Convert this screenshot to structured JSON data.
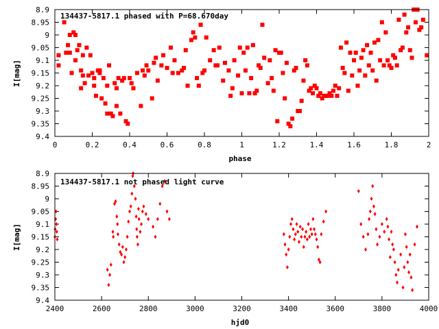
{
  "colors": {
    "points": "#ff0000",
    "axes": "#000000",
    "background": "#ffffff"
  },
  "chart_data": [
    {
      "type": "scatter",
      "title": "134437-5817.1 phased with P=68.670day",
      "xlabel": "phase",
      "ylabel": "I[mag]",
      "xlim": [
        0,
        2
      ],
      "ylim": [
        8.9,
        9.4
      ],
      "y_inverted": true,
      "x_ticks": [
        0,
        0.2,
        0.4,
        0.6,
        0.8,
        1,
        1.2,
        1.4,
        1.6,
        1.8,
        2
      ],
      "x_tick_labels": [
        "0",
        "0.2",
        "0.4",
        "0.6",
        "0.8",
        "1",
        "1.2",
        "1.4",
        "1.6",
        "1.8",
        "2"
      ],
      "y_ticks": [
        8.9,
        8.95,
        9.0,
        9.05,
        9.1,
        9.15,
        9.2,
        9.25,
        9.3,
        9.35,
        9.4
      ],
      "y_tick_labels": [
        "8.9",
        "8.95",
        "9",
        "9.05",
        "9.1",
        "9.15",
        "9.2",
        "9.25",
        "9.3",
        "9.35",
        "9.4"
      ],
      "grid": false,
      "legend": "none",
      "marker": "square",
      "series": [
        {
          "x": [
            0.02,
            0.02,
            0.05,
            0.07,
            0.08,
            0.08,
            0.09,
            0.1,
            0.11,
            0.12,
            0.13,
            0.14,
            0.15,
            0.15,
            0.16,
            0.17,
            0.18,
            0.19,
            0.2,
            0.21,
            0.22,
            0.23,
            0.24,
            0.25,
            0.26,
            0.27,
            0.28,
            0.29,
            0.3,
            0.31,
            0.32,
            0.33,
            0.34,
            0.35,
            0.37,
            0.38,
            0.39,
            0.4,
            0.42,
            0.44,
            0.46,
            0.47,
            0.48,
            0.5,
            0.52,
            0.54,
            0.55,
            0.57,
            0.58,
            0.6,
            0.62,
            0.64,
            0.66,
            0.68,
            0.7,
            0.71,
            0.73,
            0.75,
            0.76,
            0.77,
            0.78,
            0.79,
            0.81,
            0.83,
            0.85,
            0.86,
            0.88,
            0.9,
            0.91,
            0.93,
            0.95,
            0.96,
            0.98,
            1.0,
            1.01,
            1.02,
            1.03,
            1.05,
            1.06,
            1.07,
            1.09,
            1.1,
            1.12,
            1.14,
            1.16,
            1.17,
            1.18,
            1.19,
            1.2,
            1.21,
            1.22,
            1.24,
            1.25,
            1.26,
            1.27,
            1.28,
            1.29,
            1.31,
            1.32,
            1.33,
            1.35,
            1.36,
            1.37,
            1.38,
            1.39,
            1.4,
            1.41,
            1.42,
            1.43,
            1.44,
            1.45,
            1.46,
            1.47,
            1.48,
            1.49,
            1.5,
            1.51,
            1.52,
            1.54,
            1.55,
            1.57,
            1.58,
            1.59,
            1.6,
            1.61,
            1.62,
            1.63,
            1.64,
            1.65,
            1.66,
            1.67,
            1.68,
            1.7,
            1.71,
            1.73,
            1.74,
            1.76,
            1.77,
            1.79,
            1.8,
            1.81,
            1.83,
            1.85,
            1.87,
            1.88,
            1.89,
            1.9,
            1.91,
            1.93,
            1.95,
            1.97,
            1.99,
            0.06,
            0.11,
            0.14,
            0.21,
            0.24,
            0.28,
            0.33,
            0.36,
            0.41,
            0.49,
            0.53,
            0.63,
            0.69,
            0.74,
            0.8,
            0.87,
            0.94,
            0.99,
            1.04,
            1.08,
            1.11,
            1.15,
            1.23,
            1.3,
            1.34,
            1.53,
            1.56,
            1.69,
            1.72,
            1.75,
            1.78,
            1.82,
            1.84,
            1.86,
            1.92,
            1.94,
            1.96
          ],
          "y": [
            9.08,
            9.12,
            8.95,
            9.04,
            9.0,
            9.07,
            9.15,
            8.99,
            9.0,
            9.06,
            9.04,
            9.21,
            9.08,
            9.16,
            9.19,
            9.05,
            9.16,
            9.08,
            9.15,
            9.2,
            9.24,
            9.14,
            9.14,
            9.25,
            9.17,
            9.27,
            9.2,
            9.12,
            9.31,
            9.32,
            9.19,
            9.21,
            9.17,
            9.31,
            9.17,
            9.34,
            9.35,
            9.17,
            9.21,
            9.15,
            9.28,
            9.14,
            9.16,
            9.14,
            9.25,
            9.09,
            9.18,
            9.12,
            9.08,
            9.13,
            9.05,
            9.1,
            9.15,
            9.14,
            9.06,
            9.2,
            9.02,
            9.01,
            9.17,
            9.2,
            8.96,
            9.15,
            9.01,
            9.1,
            9.06,
            9.12,
            9.05,
            9.18,
            9.11,
            9.14,
            9.21,
            9.1,
            9.16,
            9.23,
            9.07,
            9.14,
            9.05,
            9.17,
            9.04,
            9.23,
            9.12,
            9.13,
            9.09,
            9.19,
            9.17,
            9.22,
            9.06,
            9.34,
            9.07,
            9.07,
            9.15,
            9.11,
            9.35,
            9.36,
            9.33,
            9.14,
            9.13,
            9.3,
            9.26,
            9.18,
            9.12,
            9.22,
            9.21,
            9.23,
            9.2,
            9.21,
            9.24,
            9.23,
            9.25,
            9.24,
            9.24,
            9.24,
            9.23,
            9.24,
            9.22,
            9.2,
            9.24,
            9.21,
            9.13,
            9.15,
            9.22,
            9.07,
            9.16,
            9.1,
            9.07,
            9.2,
            9.14,
            9.09,
            9.06,
            9.16,
            9.04,
            9.12,
            9.14,
            9.03,
            9.02,
            9.1,
            9.12,
            8.99,
            9.12,
            9.13,
            9.08,
            9.12,
            9.06,
            8.92,
            8.99,
            8.97,
            9.06,
            9.09,
            8.95,
            8.98,
            8.94,
            9.08,
            9.07,
            9.1,
            9.14,
            9.17,
            9.15,
            9.31,
            9.28,
            9.18,
            9.19,
            9.12,
            9.11,
            9.15,
            9.13,
            8.99,
            9.14,
            9.12,
            9.24,
            9.05,
            9.23,
            9.22,
            8.96,
            9.1,
            9.25,
            9.3,
            9.1,
            9.05,
            9.03,
            9.07,
            9.18,
            8.95,
            9.1,
            9.09,
            8.94,
            9.05,
            8.9,
            8.9,
            8.97
          ]
        }
      ]
    },
    {
      "type": "scatter",
      "title": "134437-5817.1 not phased light curve",
      "xlabel": "hjd0",
      "ylabel": "I[mag]",
      "xlim": [
        2400,
        4000
      ],
      "ylim": [
        8.9,
        9.4
      ],
      "y_inverted": true,
      "x_ticks": [
        2400,
        2600,
        2800,
        3000,
        3200,
        3400,
        3600,
        3800,
        4000
      ],
      "x_tick_labels": [
        "2400",
        "2600",
        "2800",
        "3000",
        "3200",
        "3400",
        "3600",
        "3800",
        "4000"
      ],
      "y_ticks": [
        8.9,
        8.95,
        9.0,
        9.05,
        9.1,
        9.15,
        9.2,
        9.25,
        9.3,
        9.35,
        9.4
      ],
      "y_tick_labels": [
        "8.9",
        "8.95",
        "9",
        "9.05",
        "9.1",
        "9.15",
        "9.2",
        "9.25",
        "9.3",
        "9.35",
        "9.4"
      ],
      "grid": false,
      "legend": "none",
      "marker": "diamond",
      "series": [
        {
          "x": [
            2400,
            2401,
            2403,
            2405,
            2407,
            2408,
            2410,
            2625,
            2630,
            2635,
            2640,
            2648,
            2650,
            2655,
            2660,
            2665,
            2668,
            2670,
            2675,
            2680,
            2685,
            2690,
            2695,
            2700,
            2705,
            2710,
            2715,
            2720,
            2725,
            2730,
            2733,
            2735,
            2740,
            2745,
            2748,
            2750,
            2752,
            2755,
            2758,
            2760,
            2765,
            2770,
            2775,
            2780,
            2790,
            2800,
            2820,
            2830,
            2840,
            2850,
            2860,
            2870,
            2880,
            2890,
            3380,
            3385,
            3390,
            3395,
            3400,
            3405,
            3410,
            3415,
            3420,
            3425,
            3430,
            3435,
            3440,
            3445,
            3450,
            3455,
            3460,
            3465,
            3470,
            3475,
            3480,
            3485,
            3490,
            3495,
            3500,
            3505,
            3510,
            3515,
            3520,
            3525,
            3530,
            3535,
            3540,
            3550,
            3560,
            3700,
            3710,
            3720,
            3730,
            3740,
            3745,
            3750,
            3755,
            3760,
            3765,
            3770,
            3775,
            3780,
            3790,
            3800,
            3810,
            3820,
            3825,
            3830,
            3835,
            3840,
            3845,
            3850,
            3855,
            3860,
            3865,
            3870,
            3880,
            3890,
            3895,
            3900,
            3905,
            3910,
            3915,
            3920,
            3925,
            3930,
            3940,
            3950
          ],
          "y": [
            9.15,
            9.12,
            9.08,
            9.05,
            9.1,
            9.13,
            9.16,
            9.28,
            9.34,
            9.3,
            9.26,
            9.13,
            9.15,
            9.02,
            9.01,
            9.07,
            9.1,
            9.14,
            9.18,
            9.21,
            9.22,
            9.19,
            9.25,
            9.23,
            9.2,
            9.15,
            9.09,
            9.05,
            9.03,
            8.98,
            8.91,
            8.9,
            8.95,
            9.0,
            9.07,
            9.12,
            9.15,
            9.18,
            9.04,
            9.08,
            9.13,
            9.1,
            9.05,
            9.03,
            9.06,
            9.08,
            9.11,
            9.15,
            9.08,
            9.02,
            8.95,
            8.93,
            9.05,
            9.08,
            9.14,
            9.18,
            9.22,
            9.27,
            9.2,
            9.15,
            9.1,
            9.08,
            9.12,
            9.16,
            9.14,
            9.1,
            9.13,
            9.17,
            9.11,
            9.15,
            9.12,
            9.19,
            9.15,
            9.13,
            9.16,
            9.1,
            9.15,
            9.12,
            9.14,
            9.08,
            9.12,
            9.14,
            9.16,
            9.19,
            9.24,
            9.25,
            9.14,
            9.09,
            9.05,
            8.97,
            9.1,
            9.15,
            9.2,
            9.14,
            9.08,
            9.05,
            9.0,
            8.95,
            9.03,
            9.06,
            9.12,
            9.18,
            9.15,
            9.1,
            9.13,
            9.08,
            9.11,
            9.16,
            9.23,
            9.13,
            9.18,
            9.2,
            9.25,
            9.3,
            9.33,
            9.28,
            9.22,
            9.35,
            9.27,
            9.14,
            9.19,
            9.25,
            9.29,
            9.22,
            9.31,
            9.36,
            9.18,
            9.11
          ]
        }
      ]
    }
  ]
}
